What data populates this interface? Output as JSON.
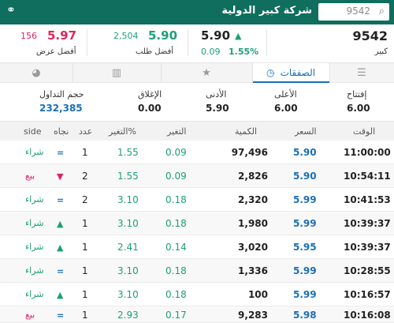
{
  "header": {
    "search_value": "9542",
    "company_title": "شركة كبير الدولية"
  },
  "quote": {
    "symbol": "9542",
    "symbol_label": "كبير",
    "last_price": "5.90",
    "change": "0.09",
    "change_pct": "1.55%",
    "bid_price": "5.90",
    "bid_qty": "2,504",
    "bid_label": "أفضل طلب",
    "ask_price": "5.97",
    "ask_qty": "156",
    "ask_label": "أفضل عرض"
  },
  "tabs": [
    {
      "label": "",
      "icon": "list-icon"
    },
    {
      "label": "الصفقات",
      "icon": "clock-icon"
    },
    {
      "label": "",
      "icon": "star-icon"
    },
    {
      "label": "",
      "icon": "bar-chart-icon"
    },
    {
      "label": "",
      "icon": "pie-chart-icon"
    }
  ],
  "summary": {
    "open_label": "إفتتاح",
    "open_value": "6.00",
    "high_label": "الأعلى",
    "high_value": "6.00",
    "low_label": "الأدنى",
    "low_value": "5.90",
    "close_label": "الإغلاق",
    "close_value": "0.00",
    "volume_label": "حجم التداول",
    "volume_value": "232,385"
  },
  "table": {
    "headers": {
      "time": "الوقت",
      "price": "السعر",
      "qty": "الكمية",
      "change": "التغير",
      "pct": "التغير%",
      "count": "عدد",
      "direction": "نجاه",
      "side": "side"
    },
    "rows": [
      {
        "time": "11:00:00",
        "price": "5.90",
        "qty": "97,496",
        "change": "0.09",
        "pct": "1.55",
        "count": "1",
        "dir": "=",
        "side": "شراء"
      },
      {
        "time": "10:54:11",
        "price": "5.90",
        "qty": "2,826",
        "change": "0.09",
        "pct": "1.55",
        "count": "2",
        "dir": "▼",
        "side": "بيع"
      },
      {
        "time": "10:41:53",
        "price": "5.99",
        "qty": "2,320",
        "change": "0.18",
        "pct": "3.10",
        "count": "2",
        "dir": "=",
        "side": "شراء"
      },
      {
        "time": "10:39:37",
        "price": "5.99",
        "qty": "1,980",
        "change": "0.18",
        "pct": "3.10",
        "count": "1",
        "dir": "▲",
        "side": "شراء"
      },
      {
        "time": "10:39:37",
        "price": "5.95",
        "qty": "3,020",
        "change": "0.14",
        "pct": "2.41",
        "count": "1",
        "dir": "▲",
        "side": "شراء"
      },
      {
        "time": "10:28:55",
        "price": "5.99",
        "qty": "1,336",
        "change": "0.18",
        "pct": "3.10",
        "count": "1",
        "dir": "=",
        "side": "شراء"
      },
      {
        "time": "10:16:57",
        "price": "5.99",
        "qty": "100",
        "change": "0.18",
        "pct": "3.10",
        "count": "1",
        "dir": "▲",
        "side": "شراء"
      },
      {
        "time": "10:16:08",
        "price": "5.98",
        "qty": "9,283",
        "change": "0.17",
        "pct": "2.93",
        "count": "1",
        "dir": "=",
        "side": "بيع"
      }
    ]
  },
  "colors": {
    "header_bg": "#0f6e5e",
    "up": "#1e9e7a",
    "down": "#e0245e",
    "accent": "#1a6fb8"
  }
}
